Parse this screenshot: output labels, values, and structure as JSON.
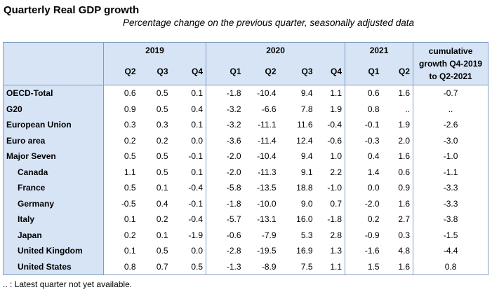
{
  "title": "Quarterly Real GDP growth",
  "subtitle": "Percentage change on the previous quarter, seasonally adjusted data",
  "years": [
    "2019",
    "2020",
    "2021"
  ],
  "quarters": [
    "Q2",
    "Q3",
    "Q4",
    "Q1",
    "Q2",
    "Q3",
    "Q4",
    "Q1",
    "Q2"
  ],
  "cumulative_header": [
    "cumulative",
    "growth Q4-2019",
    "to Q2-2021"
  ],
  "rows": [
    {
      "label": "OECD-Total",
      "values": [
        "0.6",
        "0.5",
        "0.1",
        "-1.8",
        "-10.4",
        "9.4",
        "1.1",
        "0.6",
        "1.6"
      ],
      "cum": "-0.7"
    },
    {
      "label": "G20",
      "values": [
        "0.9",
        "0.5",
        "0.4",
        "-3.2",
        "-6.6",
        "7.8",
        "1.9",
        "0.8",
        ".."
      ],
      "cum": ".."
    },
    {
      "label": "European Union",
      "values": [
        "0.3",
        "0.3",
        "0.1",
        "-3.2",
        "-11.1",
        "11.6",
        "-0.4",
        "-0.1",
        "1.9"
      ],
      "cum": "-2.6"
    },
    {
      "label": "Euro area",
      "values": [
        "0.2",
        "0.2",
        "0.0",
        "-3.6",
        "-11.4",
        "12.4",
        "-0.6",
        "-0.3",
        "2.0"
      ],
      "cum": "-3.0"
    },
    {
      "label": "Major Seven",
      "values": [
        "0.5",
        "0.5",
        "-0.1",
        "-2.0",
        "-10.4",
        "9.4",
        "1.0",
        "0.4",
        "1.6"
      ],
      "cum": "-1.0"
    },
    {
      "label": "Canada",
      "values": [
        "1.1",
        "0.5",
        "0.1",
        "-2.0",
        "-11.3",
        "9.1",
        "2.2",
        "1.4",
        "0.6"
      ],
      "cum": "-1.1"
    },
    {
      "label": "France",
      "values": [
        "0.5",
        "0.1",
        "-0.4",
        "-5.8",
        "-13.5",
        "18.8",
        "-1.0",
        "0.0",
        "0.9"
      ],
      "cum": "-3.3"
    },
    {
      "label": "Germany",
      "values": [
        "-0.5",
        "0.4",
        "-0.1",
        "-1.8",
        "-10.0",
        "9.0",
        "0.7",
        "-2.0",
        "1.6"
      ],
      "cum": "-3.3"
    },
    {
      "label": "Italy",
      "values": [
        "0.1",
        "0.2",
        "-0.4",
        "-5.7",
        "-13.1",
        "16.0",
        "-1.8",
        "0.2",
        "2.7"
      ],
      "cum": "-3.8"
    },
    {
      "label": "Japan",
      "values": [
        "0.2",
        "0.1",
        "-1.9",
        "-0.6",
        "-7.9",
        "5.3",
        "2.8",
        "-0.9",
        "0.3"
      ],
      "cum": "-1.5"
    },
    {
      "label": "United Kingdom",
      "values": [
        "0.1",
        "0.5",
        "0.0",
        "-2.8",
        "-19.5",
        "16.9",
        "1.3",
        "-1.6",
        "4.8"
      ],
      "cum": "-4.4"
    },
    {
      "label": "United States",
      "values": [
        "0.8",
        "0.7",
        "0.5",
        "-1.3",
        "-8.9",
        "7.5",
        "1.1",
        "1.5",
        "1.6"
      ],
      "cum": "0.8"
    }
  ],
  "footnote": ".. : Latest quarter not yet available."
}
